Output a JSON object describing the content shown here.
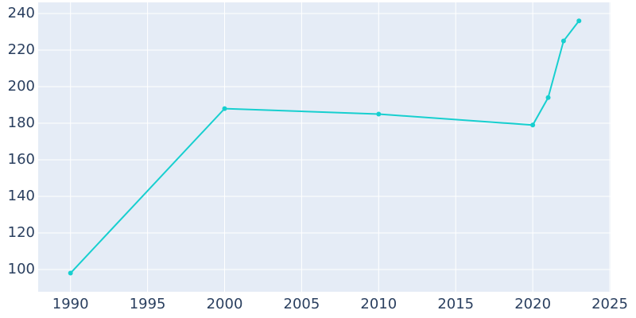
{
  "chart_data": {
    "type": "line",
    "x": [
      1990,
      2000,
      2010,
      2020,
      2021,
      2022,
      2023
    ],
    "series": [
      {
        "color": "#17cfcf",
        "values": [
          98,
          188,
          185,
          179,
          194,
          225,
          236
        ]
      }
    ],
    "xlim": [
      1987.9,
      2025.05
    ],
    "xticks": [
      1990,
      1995,
      2000,
      2005,
      2010,
      2015,
      2020,
      2025
    ],
    "ylim": [
      87.8,
      246.1
    ],
    "yticks": [
      100,
      120,
      140,
      160,
      180,
      200,
      220,
      240
    ],
    "grid": true
  }
}
